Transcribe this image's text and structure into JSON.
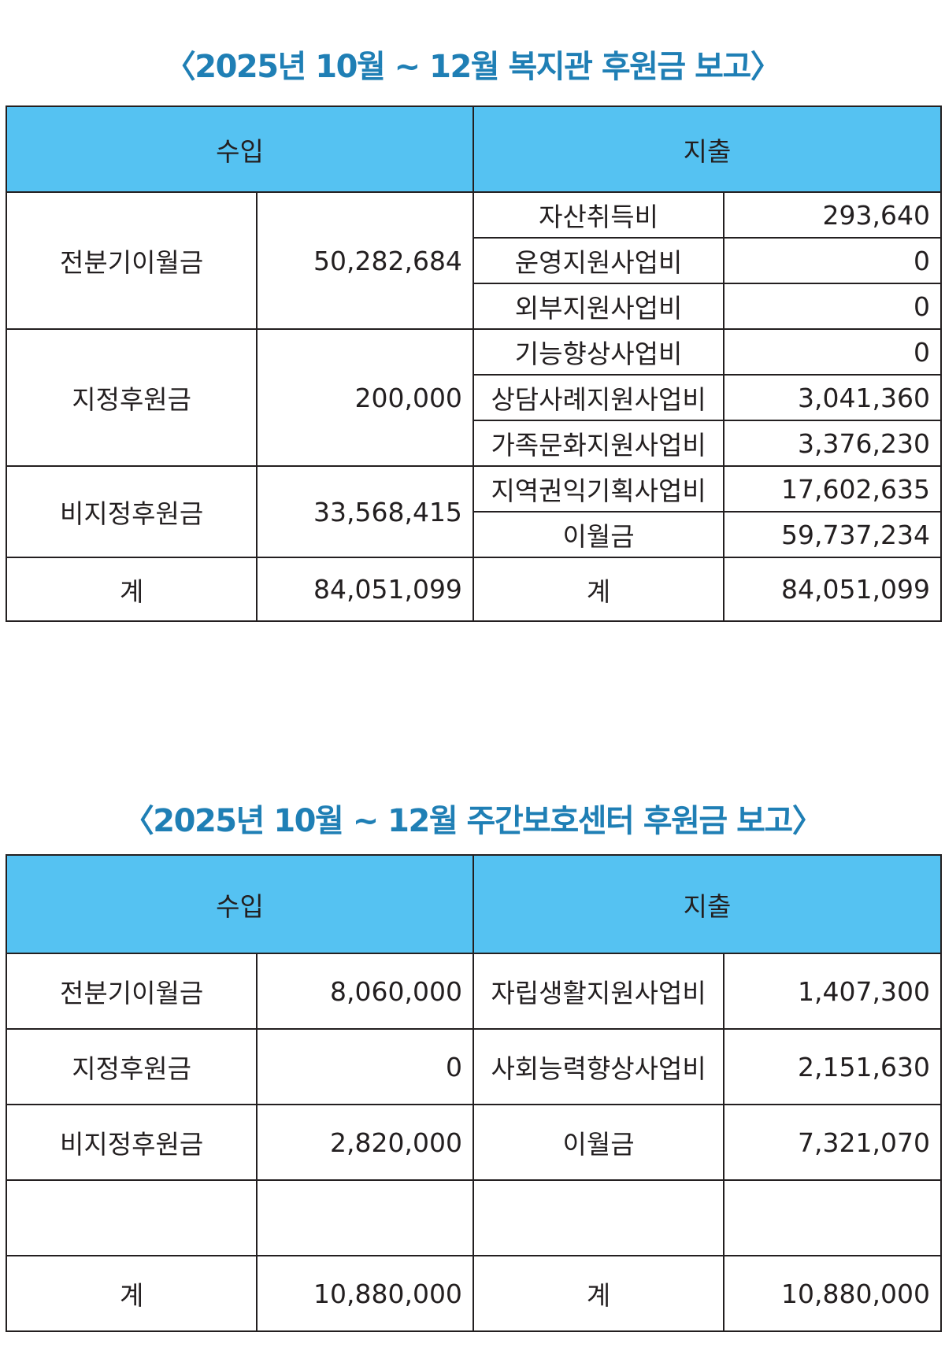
{
  "report1": {
    "title": "〈2025년 10월 ~ 12월 복지관 후원금 보고〉",
    "header": {
      "income": "수입",
      "expense": "지출"
    },
    "income": [
      {
        "label": "전분기이월금",
        "amount": "50,282,684"
      },
      {
        "label": "지정후원금",
        "amount": "200,000"
      },
      {
        "label": "비지정후원금",
        "amount": "33,568,415"
      }
    ],
    "expense": [
      {
        "label": "자산취득비",
        "amount": "293,640"
      },
      {
        "label": "운영지원사업비",
        "amount": "0"
      },
      {
        "label": "외부지원사업비",
        "amount": "0"
      },
      {
        "label": "기능향상사업비",
        "amount": "0"
      },
      {
        "label": "상담사례지원사업비",
        "amount": "3,041,360"
      },
      {
        "label": "가족문화지원사업비",
        "amount": "3,376,230"
      },
      {
        "label": "지역권익기획사업비",
        "amount": "17,602,635"
      },
      {
        "label": "이월금",
        "amount": "59,737,234"
      }
    ],
    "total": {
      "income_label": "계",
      "income_amount": "84,051,099",
      "expense_label": "계",
      "expense_amount": "84,051,099"
    }
  },
  "report2": {
    "title": "〈2025년 10월 ~ 12월 주간보호센터 후원금 보고〉",
    "header": {
      "income": "수입",
      "expense": "지출"
    },
    "income": [
      {
        "label": "전분기이월금",
        "amount": "8,060,000"
      },
      {
        "label": "지정후원금",
        "amount": "0"
      },
      {
        "label": "비지정후원금",
        "amount": "2,820,000"
      }
    ],
    "expense": [
      {
        "label": "자립생활지원사업비",
        "amount": "1,407,300"
      },
      {
        "label": "사회능력향상사업비",
        "amount": "2,151,630"
      },
      {
        "label": "이월금",
        "amount": "7,321,070"
      }
    ],
    "total": {
      "income_label": "계",
      "income_amount": "10,880,000",
      "expense_label": "계",
      "expense_amount": "10,880,000"
    }
  }
}
